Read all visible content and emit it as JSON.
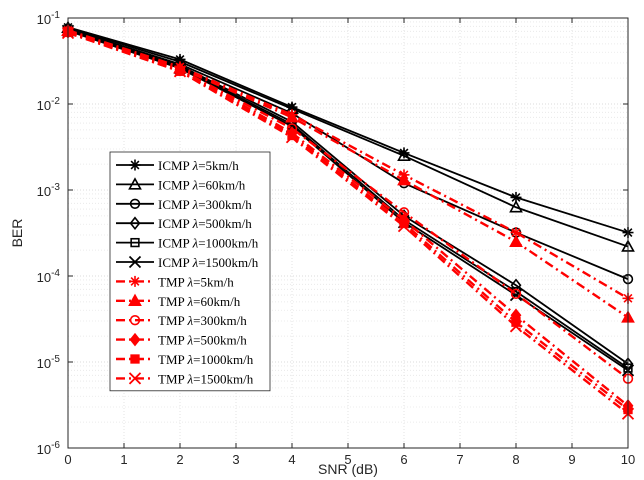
{
  "chart_data": {
    "type": "line",
    "xlabel": "SNR (dB)",
    "ylabel": "BER",
    "x_scale": "linear",
    "y_scale": "log",
    "xlim": [
      0,
      10
    ],
    "ylim": [
      1e-06,
      0.1
    ],
    "xticks": [
      "0",
      "1",
      "2",
      "3",
      "4",
      "5",
      "6",
      "7",
      "8",
      "9",
      "10"
    ],
    "yticks": [
      {
        "base": "10",
        "exp": "-6"
      },
      {
        "base": "10",
        "exp": "-5"
      },
      {
        "base": "10",
        "exp": "-4"
      },
      {
        "base": "10",
        "exp": "-3"
      },
      {
        "base": "10",
        "exp": "-2"
      },
      {
        "base": "10",
        "exp": "-1"
      }
    ],
    "grid": true,
    "minor_grid": true,
    "legend_position": "left",
    "x": [
      0,
      2,
      4,
      6,
      8,
      10
    ],
    "series": [
      {
        "name_prefix": "ICMP ",
        "name_suffix": "=5km/h",
        "color": "#000000",
        "style": "solid",
        "marker": "asterisk",
        "values": [
          0.078,
          0.033,
          0.0092,
          0.0027,
          0.00082,
          0.00032
        ]
      },
      {
        "name_prefix": "ICMP ",
        "name_suffix": "=60km/h",
        "color": "#000000",
        "style": "solid",
        "marker": "triangle",
        "values": [
          0.077,
          0.031,
          0.0088,
          0.0025,
          0.00063,
          0.00022
        ]
      },
      {
        "name_prefix": "ICMP ",
        "name_suffix": "=300km/h",
        "color": "#000000",
        "style": "solid",
        "marker": "circle",
        "values": [
          0.075,
          0.029,
          0.0078,
          0.0012,
          0.00032,
          9.2e-05
        ]
      },
      {
        "name_prefix": "ICMP ",
        "name_suffix": "=500km/h",
        "color": "#000000",
        "style": "solid",
        "marker": "diamond",
        "values": [
          0.073,
          0.028,
          0.0062,
          0.0005,
          7.8e-05,
          9.5e-06
        ]
      },
      {
        "name_prefix": "ICMP ",
        "name_suffix": "=1000km/h",
        "color": "#000000",
        "style": "solid",
        "marker": "square",
        "values": [
          0.072,
          0.027,
          0.0058,
          0.00045,
          6.6e-05,
          8.5e-06
        ]
      },
      {
        "name_prefix": "ICMP ",
        "name_suffix": "=1500km/h",
        "color": "#000000",
        "style": "solid",
        "marker": "cross",
        "values": [
          0.071,
          0.026,
          0.0055,
          0.00042,
          6e-05,
          8e-06
        ]
      },
      {
        "name_prefix": "TMP ",
        "name_suffix": "=5km/h",
        "color": "#ff0000",
        "style": "dashdot",
        "marker": "asterisk",
        "values": [
          0.072,
          0.027,
          0.0075,
          0.0015,
          0.00032,
          5.5e-05
        ]
      },
      {
        "name_prefix": "TMP ",
        "name_suffix": "=60km/h",
        "color": "#ff0000",
        "style": "dashdot",
        "marker": "triangle",
        "values": [
          0.071,
          0.026,
          0.007,
          0.0013,
          0.00025,
          3.3e-05
        ]
      },
      {
        "name_prefix": "TMP ",
        "name_suffix": "=300km/h",
        "color": "#ff0000",
        "style": "dashdot",
        "marker": "circle",
        "values": [
          0.07,
          0.025,
          0.0052,
          0.00055,
          6.2e-05,
          6.4e-06
        ]
      },
      {
        "name_prefix": "TMP ",
        "name_suffix": "=500km/h",
        "color": "#ff0000",
        "style": "dashdot",
        "marker": "diamond",
        "values": [
          0.069,
          0.025,
          0.0046,
          0.00045,
          3.5e-05,
          3.1e-06
        ]
      },
      {
        "name_prefix": "TMP ",
        "name_suffix": "=1000km/h",
        "color": "#ff0000",
        "style": "dashdot",
        "marker": "square",
        "values": [
          0.068,
          0.024,
          0.0043,
          0.00041,
          2.9e-05,
          2.8e-06
        ]
      },
      {
        "name_prefix": "TMP ",
        "name_suffix": "=1500km/h",
        "color": "#ff0000",
        "style": "dashdot",
        "marker": "cross",
        "values": [
          0.067,
          0.024,
          0.0041,
          0.00038,
          2.6e-05,
          2.5e-06
        ]
      }
    ],
    "legend_symbol": "λ"
  }
}
